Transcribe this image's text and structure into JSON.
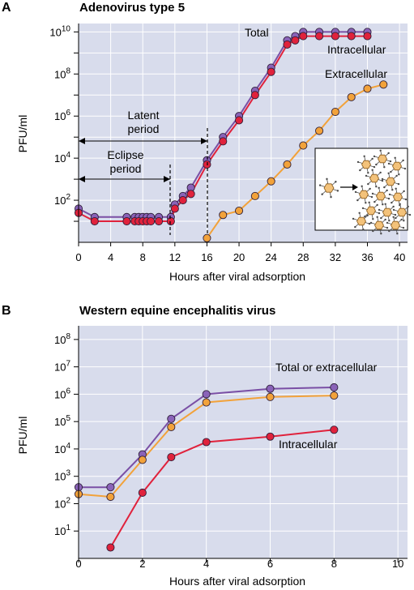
{
  "colors": {
    "plot_bg": "#d8dcec",
    "grid": "#ffffff",
    "total": "#7a4fa5",
    "total_marker": "#8a63b8",
    "intra": "#e0223c",
    "extra": "#f2a23a",
    "marker_stroke": "#3a2a4a"
  },
  "chart_data": [
    {
      "type": "line",
      "panel_label": "A",
      "title": "Adenovirus type 5",
      "xlabel": "Hours after viral adsorption",
      "ylabel": "PFU/ml",
      "xlim": [
        0,
        41
      ],
      "ylim_log10": [
        0,
        10.4
      ],
      "y_scale": "log",
      "grid": true,
      "x_ticks": [
        0,
        4,
        8,
        12,
        16,
        20,
        24,
        28,
        32,
        36,
        40
      ],
      "x_tick_labels": [
        "0",
        "4",
        "8",
        "12",
        "16",
        "20",
        "24",
        "28",
        "32",
        "36",
        "40"
      ],
      "y_ticks_exp": [
        2,
        4,
        6,
        8,
        10
      ],
      "y_tick_base": "10",
      "series": [
        {
          "name": "Total",
          "color_key": "total",
          "x": [
            0,
            2,
            6,
            7,
            7.5,
            8,
            8.5,
            9,
            10,
            11.5,
            12,
            13,
            14,
            16,
            18,
            20,
            22,
            24,
            26,
            27,
            28,
            30,
            32,
            34,
            36
          ],
          "log10_y": [
            1.6,
            1.2,
            1.2,
            1.2,
            1.2,
            1.2,
            1.2,
            1.2,
            1.2,
            1.2,
            1.8,
            2.2,
            2.6,
            3.9,
            5.0,
            6.0,
            7.2,
            8.3,
            9.6,
            9.8,
            10.0,
            10.0,
            10.0,
            10.0,
            10.0
          ]
        },
        {
          "name": "Intracellular",
          "color_key": "intra",
          "x": [
            0,
            2,
            6,
            7,
            7.5,
            8,
            8.5,
            9,
            10,
            11.5,
            12,
            13,
            14,
            16,
            18,
            20,
            22,
            24,
            26,
            27,
            28,
            30,
            32,
            34,
            36
          ],
          "log10_y": [
            1.4,
            1.0,
            1.0,
            1.0,
            1.0,
            1.0,
            1.0,
            1.0,
            1.0,
            1.0,
            1.6,
            2.0,
            2.3,
            3.7,
            4.8,
            5.8,
            7.0,
            8.1,
            9.4,
            9.6,
            9.8,
            9.8,
            9.8,
            9.8,
            9.8
          ]
        },
        {
          "name": "Extracellular",
          "color_key": "extra",
          "x": [
            16,
            18,
            20,
            22,
            24,
            26,
            28,
            30,
            32,
            34,
            36,
            38
          ],
          "log10_y": [
            0.2,
            1.3,
            1.5,
            2.2,
            2.9,
            3.7,
            4.6,
            5.3,
            6.2,
            6.9,
            7.3,
            7.5
          ]
        }
      ],
      "annotations": {
        "latent": {
          "line1": "Latent",
          "line2": "period"
        },
        "eclipse": {
          "line1": "Eclipse",
          "line2": "period"
        }
      }
    },
    {
      "type": "line",
      "panel_label": "B",
      "title": "Western equine encephalitis virus",
      "xlabel": "Hours after viral adsorption",
      "ylabel": "PFU/ml",
      "xlim": [
        0,
        10.3
      ],
      "ylim_log10": [
        0,
        8.5
      ],
      "y_scale": "log",
      "grid": true,
      "x_ticks": [
        0,
        2,
        4,
        6,
        8,
        10
      ],
      "x_tick_labels": [
        "0",
        "2",
        "4",
        "6",
        "8",
        "10"
      ],
      "y_ticks_exp": [
        1,
        2,
        3,
        4,
        5,
        6,
        7,
        8
      ],
      "y_tick_base": "10",
      "series": [
        {
          "name": "Total or extracellular",
          "color_key": "total",
          "x": [
            0,
            1,
            2,
            2.9,
            4,
            6,
            8
          ],
          "log10_y": [
            2.6,
            2.6,
            3.8,
            5.1,
            6.0,
            6.2,
            6.25
          ]
        },
        {
          "name": "",
          "color_key": "extra",
          "x": [
            0,
            1,
            2,
            2.9,
            4,
            6,
            8
          ],
          "log10_y": [
            2.35,
            2.25,
            3.6,
            4.8,
            5.7,
            5.9,
            5.95
          ]
        },
        {
          "name": "Intracellular",
          "color_key": "intra",
          "x": [
            1,
            2,
            2.9,
            4,
            6,
            8
          ],
          "log10_y": [
            0.4,
            2.4,
            3.7,
            4.25,
            4.45,
            4.7
          ]
        }
      ]
    }
  ]
}
